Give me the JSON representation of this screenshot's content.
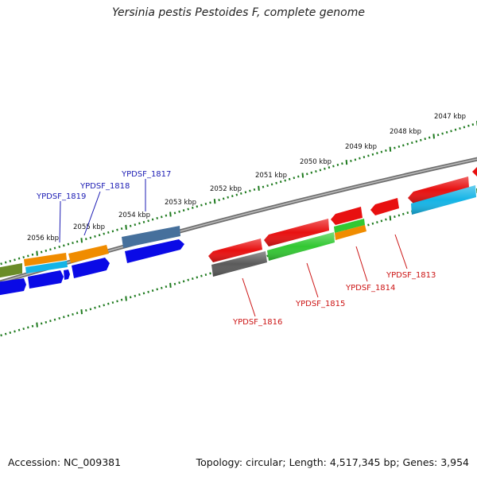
{
  "title": "Yersinia pestis Pestoides F, complete genome",
  "footer": {
    "accession": "Accession: NC_009381",
    "summary": "Topology: circular; Length: 4,517,345 bp; Genes: 3,954"
  },
  "ticks": [
    "2047 kbp",
    "2048 kbp",
    "2049 kbp",
    "2050 kbp",
    "2051 kbp",
    "2052 kbp",
    "2053 kbp",
    "2054 kbp",
    "2055 kbp",
    "2056 kbp"
  ],
  "gene_labels_top": [
    "YPDSF_1817",
    "YPDSF_1818",
    "YPDSF_1819"
  ],
  "gene_labels_bottom": [
    "YPDSF_1813",
    "YPDSF_1814",
    "YPDSF_1815",
    "YPDSF_1816"
  ],
  "colors": {
    "backbone": "#808080",
    "tick": "#1e7a1e",
    "label_top": "#1c1cb4",
    "label_bottom": "#cc1414",
    "red": "#e81010",
    "blue": "#0a0ae6",
    "orange": "#f08c00",
    "cyan": "#14b4e6",
    "green": "#32c832",
    "olive": "#6a8c28",
    "steel": "#46709c",
    "gray": "#5a5a5a"
  }
}
